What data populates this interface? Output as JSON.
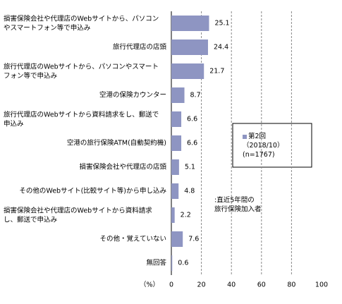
{
  "chart_data": {
    "type": "hbar",
    "categories": [
      "損害保険会社や代理店のWebサイトから、パソコン\nやスマートフォン等で申込み",
      "旅行代理店の店頭",
      "旅行代理店のWebサイトから、パソコンやスマート\nフォン等で申込み",
      "空港の保険カウンター",
      "旅行代理店のWebサイトから資料請求をし、郵送で\n申込み",
      "空港の旅行保険ATM(自動契約機)",
      "損害保険会社や代理店の店頭",
      "その他のWebサイト(比較サイト等)から申し込み",
      "損害保険会社や代理店のWebサイトから資料請求\nし、郵送で申込み",
      "その他・覚えていない",
      "無回答"
    ],
    "series": [
      {
        "name": "第2回\n（2018/10）\n(n=1767)",
        "color": "#8e95c2",
        "values": [
          25.1,
          24.4,
          21.7,
          8.7,
          6.6,
          6.6,
          5.1,
          4.8,
          2.2,
          7.6,
          0.6
        ]
      }
    ],
    "xlim": [
      0,
      100
    ],
    "xticks": [
      0,
      20,
      40,
      60,
      80,
      100
    ],
    "xlabel": "（%）",
    "grid": true,
    "annotation": ":直近5年間の\n旅行保険加入者"
  }
}
